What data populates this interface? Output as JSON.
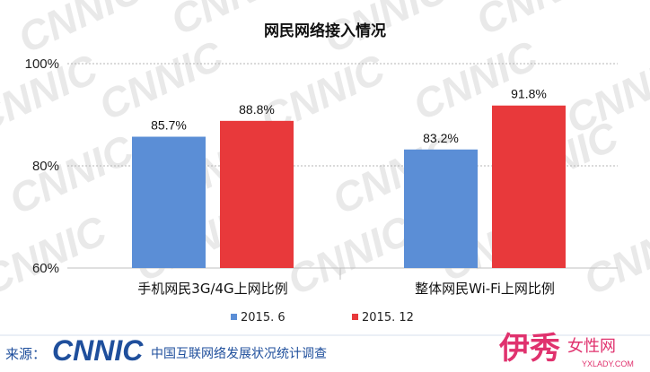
{
  "watermark": "CNNIC",
  "chart_data": {
    "type": "bar",
    "title": "网民网络接入情况",
    "categories": [
      "手机网民3G/4G上网比例",
      "整体网民Wi-Fi上网比例"
    ],
    "series": [
      {
        "name": "2015. 6",
        "values": [
          85.7,
          83.2
        ],
        "labels": [
          "85.7%",
          "83.2%"
        ],
        "color": "#5b8ed6"
      },
      {
        "name": "2015. 12",
        "values": [
          88.8,
          91.8
        ],
        "labels": [
          "88.8%",
          "91.8%"
        ],
        "color": "#e8393b"
      }
    ],
    "ylim": [
      60,
      100
    ],
    "yticks": [
      60,
      80,
      100
    ],
    "ytick_labels": [
      "60%",
      "80%",
      "100%"
    ],
    "grid": true,
    "legend": "bottom"
  },
  "footer": {
    "source_label": "来源：",
    "logo_text": "CNNIC",
    "description": "中国互联网络发展状况统计调查"
  },
  "corner": {
    "brand_big": "伊秀",
    "brand_mid": "女性网",
    "url": "YXLADY.COM"
  }
}
